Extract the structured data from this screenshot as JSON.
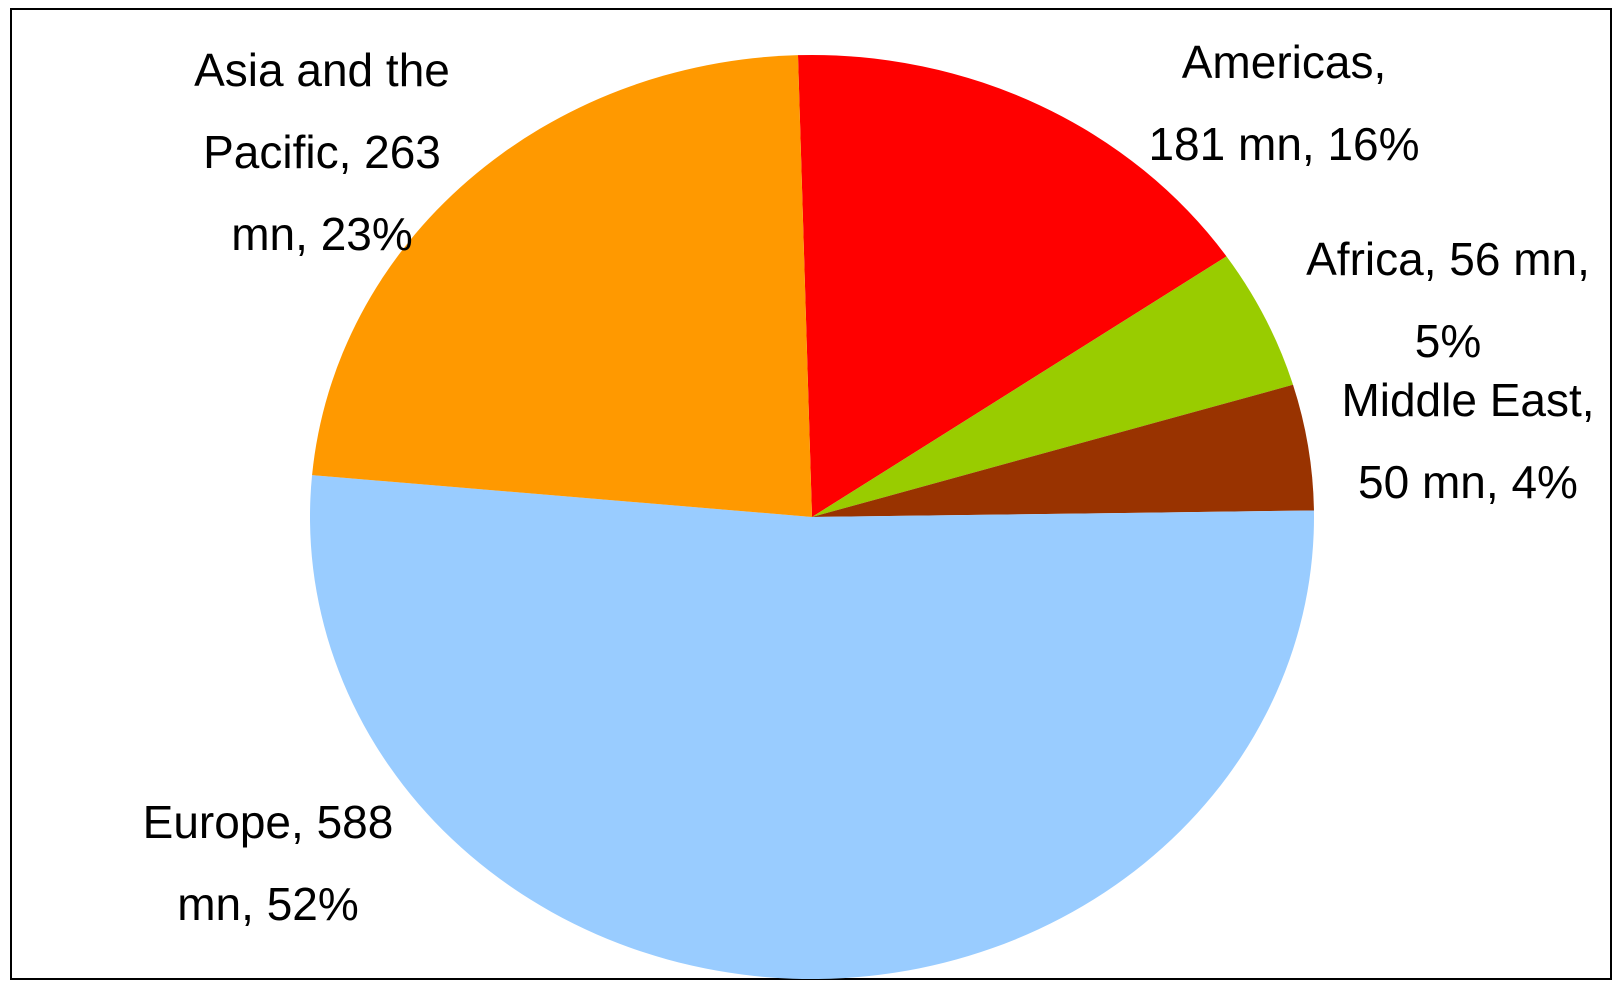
{
  "chart_data": {
    "type": "pie",
    "title": "",
    "unit": "mn",
    "slices": [
      {
        "name": "Americas",
        "value": 181,
        "percent": 16,
        "color": "#ff0000",
        "label_lines": [
          "Americas,",
          "181 mn, 16%"
        ]
      },
      {
        "name": "Africa",
        "value": 56,
        "percent": 5,
        "color": "#99cc00",
        "label_lines": [
          "Africa, 56 mn,",
          "5%"
        ]
      },
      {
        "name": "Middle East",
        "value": 50,
        "percent": 4,
        "color": "#993300",
        "label_lines": [
          "Middle East,",
          "50 mn, 4%"
        ]
      },
      {
        "name": "Europe",
        "value": 588,
        "percent": 52,
        "color": "#99ccff",
        "label_lines": [
          "Europe, 588",
          "mn, 52%"
        ]
      },
      {
        "name": "Asia and the Pacific",
        "value": 263,
        "percent": 23,
        "color": "#ff9900",
        "label_lines": [
          "Asia and the",
          "Pacific, 263",
          "mn, 23%"
        ]
      }
    ],
    "legend": "none",
    "data_labels": "outside"
  }
}
